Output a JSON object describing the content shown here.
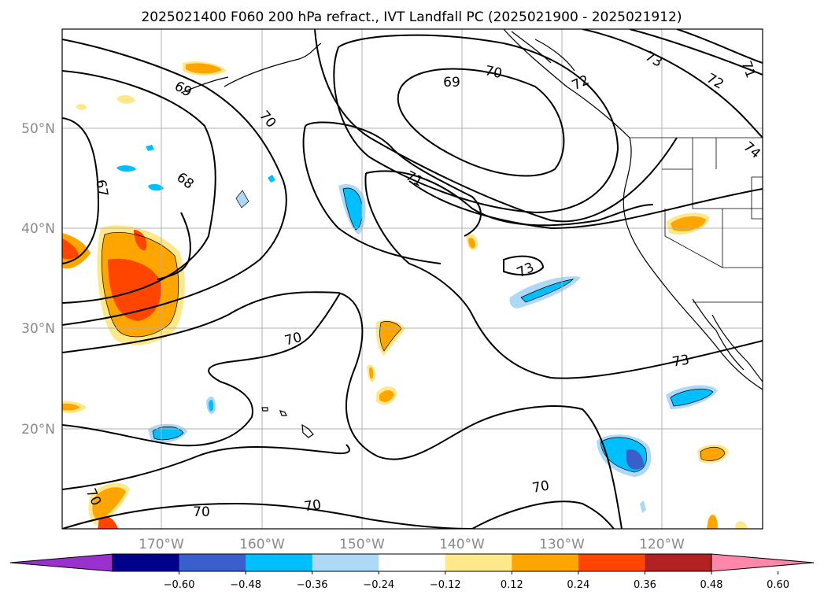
{
  "title": "2025021400 F060 200 hPa refract., IVT Landfall PC (2025021900 - 2025021912)",
  "latitude_labels": [
    "50°N",
    "40°N",
    "30°N",
    "20°N"
  ],
  "longitude_labels": [
    "170°W",
    "160°W",
    "150°W",
    "140°W",
    "130°W",
    "120°W"
  ],
  "colorbar": {
    "ticks": [
      "−0.60",
      "−0.48",
      "−0.36",
      "−0.24",
      "−0.12",
      "0.12",
      "0.24",
      "0.36",
      "0.48",
      "0.60"
    ],
    "colors": [
      "#9932cc",
      "#00008b",
      "#3a5fcd",
      "#00bfff",
      "#add8f6",
      "#ffffff",
      "#ffe88a",
      "#ffa500",
      "#ff4500",
      "#b22222",
      "#ff88aa"
    ]
  },
  "contour_labels": [
    "69",
    "70",
    "70",
    "71",
    "72",
    "73",
    "71",
    "72",
    "74",
    "68",
    "67",
    "69",
    "70",
    "73",
    "73",
    "70",
    "70",
    "70",
    "70"
  ],
  "colors": {
    "contour": "#000000",
    "grid": "#b0b0b0",
    "axis_label": "#8a8a8a"
  }
}
